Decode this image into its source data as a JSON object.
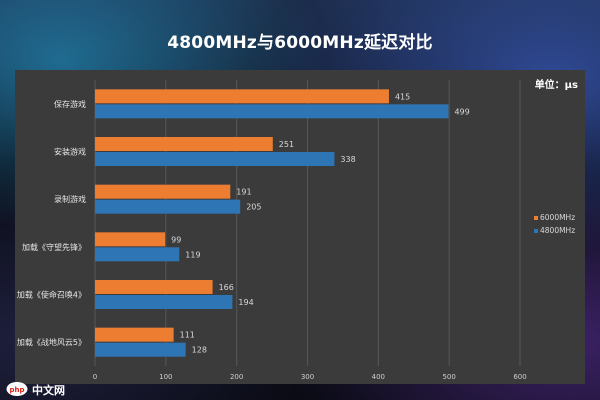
{
  "chart_data": {
    "type": "bar",
    "orientation": "horizontal",
    "title": "4800MHz与6000MHz延迟对比",
    "unit_label": "单位：μs",
    "categories": [
      "保存游戏",
      "安装游戏",
      "录制游戏",
      "加载《守望先锋》",
      "加载《使命召唤4》",
      "加载《战地风云5》"
    ],
    "series": [
      {
        "name": "6000MHz",
        "values": [
          415,
          251,
          191,
          99,
          166,
          111
        ],
        "color": "#ed7d31"
      },
      {
        "name": "4800MHz",
        "values": [
          499,
          338,
          205,
          119,
          194,
          128
        ],
        "color": "#2e75b6"
      }
    ],
    "xlim": [
      0,
      600
    ],
    "xticks": [
      "0",
      "100",
      "200",
      "300",
      "400",
      "500",
      "600"
    ],
    "legend_position": "right",
    "grid": true
  },
  "watermark": {
    "text": "中文网",
    "logo_text": "php"
  }
}
